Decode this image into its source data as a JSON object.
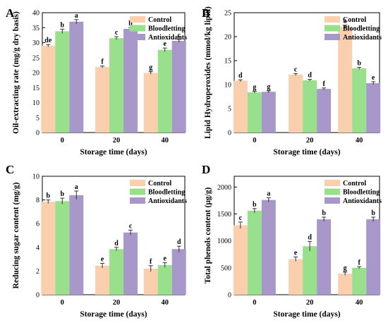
{
  "colors": {
    "Control": "#f9cfae",
    "Bloodletting": "#98e08c",
    "Antioxidants": "#a897c9",
    "axis": "#000000"
  },
  "chart_data": [
    {
      "type": "bar",
      "panel": "A",
      "categories": [
        "0",
        "20",
        "40"
      ],
      "series": [
        {
          "name": "Control",
          "values": [
            29.0,
            21.9,
            19.9
          ],
          "errors": [
            0.4,
            0.3,
            0.4
          ],
          "letters": [
            "de",
            "f",
            "g"
          ]
        },
        {
          "name": "Bloodletting",
          "values": [
            33.8,
            31.5,
            27.6
          ],
          "errors": [
            0.7,
            0.5,
            0.6
          ],
          "letters": [
            "b",
            "c",
            "e"
          ]
        },
        {
          "name": "Antioxidants",
          "values": [
            37.0,
            34.6,
            30.6
          ],
          "errors": [
            0.7,
            0.4,
            0.5
          ],
          "letters": [
            "a",
            "b",
            "c"
          ]
        }
      ],
      "xlabel": "Storage time (days)",
      "ylabel": "Oil-extracting rate (mg/g dry basis)",
      "ylim": [
        0,
        40
      ],
      "yticks": [
        0,
        5,
        10,
        15,
        20,
        25,
        30,
        35,
        40
      ],
      "legend": "top-right"
    },
    {
      "type": "bar",
      "panel": "B",
      "categories": [
        "0",
        "20",
        "40"
      ],
      "series": [
        {
          "name": "Control",
          "values": [
            10.8,
            12.1,
            22.1
          ],
          "errors": [
            0.2,
            0.2,
            0.3
          ],
          "letters": [
            "d",
            "c",
            "a"
          ]
        },
        {
          "name": "Bloodletting",
          "values": [
            8.4,
            10.9,
            13.4
          ],
          "errors": [
            0.2,
            0.2,
            0.2
          ],
          "letters": [
            "g",
            "d",
            "b"
          ]
        },
        {
          "name": "Antioxidants",
          "values": [
            8.5,
            9.1,
            10.3
          ],
          "errors": [
            0.2,
            0.2,
            0.3
          ],
          "letters": [
            "g",
            "f",
            "e"
          ]
        }
      ],
      "xlabel": "Storage time (days)",
      "ylabel": "Lipid Hydroperoxides (mmol/kg lipid)",
      "ylim": [
        0,
        25
      ],
      "yticks": [
        0,
        5,
        10,
        15,
        20,
        25
      ],
      "legend": "top-right"
    },
    {
      "type": "bar",
      "panel": "C",
      "categories": [
        "0",
        "20",
        "40"
      ],
      "series": [
        {
          "name": "Control",
          "values": [
            7.85,
            2.45,
            2.2
          ],
          "errors": [
            0.15,
            0.2,
            0.25
          ],
          "letters": [
            "b",
            "e",
            "f"
          ]
        },
        {
          "name": "Bloodletting",
          "values": [
            7.9,
            3.85,
            2.5
          ],
          "errors": [
            0.25,
            0.15,
            0.2
          ],
          "letters": [
            "b",
            "d",
            "e"
          ]
        },
        {
          "name": "Antioxidants",
          "values": [
            8.4,
            5.25,
            3.85
          ],
          "errors": [
            0.35,
            0.2,
            0.25
          ],
          "letters": [
            "a",
            "c",
            "d"
          ]
        }
      ],
      "xlabel": "Storage time (days)",
      "ylabel": "Reducing sugar content (mg/g)",
      "ylim": [
        0,
        10
      ],
      "yticks": [
        0,
        2,
        4,
        6,
        8,
        10
      ],
      "legend": "top-right"
    },
    {
      "type": "bar",
      "panel": "D",
      "categories": [
        "0",
        "20",
        "40"
      ],
      "series": [
        {
          "name": "Control",
          "values": [
            1290,
            660,
            390
          ],
          "errors": [
            60,
            40,
            30
          ],
          "letters": [
            "c",
            "e",
            "g"
          ]
        },
        {
          "name": "Bloodletting",
          "values": [
            1560,
            900,
            500
          ],
          "errors": [
            40,
            90,
            20
          ],
          "letters": [
            "b",
            "d",
            "f"
          ]
        },
        {
          "name": "Antioxidants",
          "values": [
            1760,
            1400,
            1400
          ],
          "errors": [
            40,
            40,
            40
          ],
          "letters": [
            "a",
            "b",
            "b"
          ]
        }
      ],
      "xlabel": "Storage time (days)",
      "ylabel": "Total phenols content (μg/g)",
      "ylim": [
        0,
        2200
      ],
      "yticks": [
        0,
        500,
        1000,
        1500,
        2000
      ],
      "legend": "top-right"
    }
  ]
}
